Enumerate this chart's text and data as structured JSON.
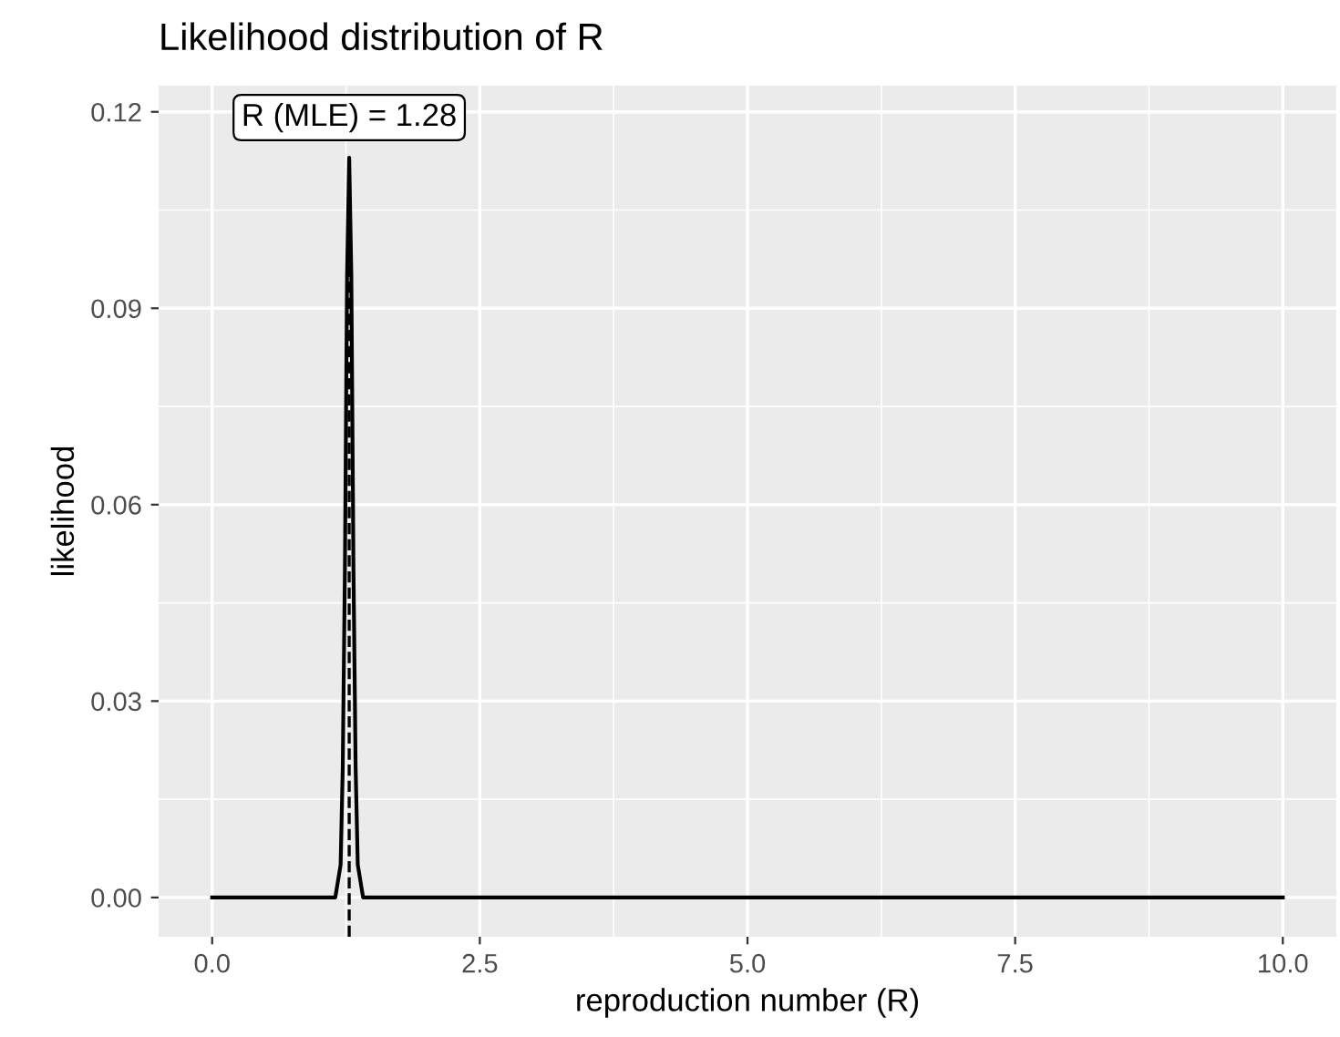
{
  "chart_data": {
    "type": "line",
    "title": "Likelihood distribution of R",
    "xlabel": "reproduction number (R)",
    "ylabel": "likelihood",
    "series": [
      {
        "color": "#000000",
        "x": [
          0,
          1.15,
          1.2,
          1.22,
          1.24,
          1.26,
          1.28,
          1.3,
          1.32,
          1.34,
          1.36,
          1.41,
          10
        ],
        "values": [
          0,
          0,
          0.005,
          0.02,
          0.05,
          0.095,
          0.113,
          0.095,
          0.05,
          0.02,
          0.005,
          0,
          0
        ]
      }
    ],
    "xlim": [
      -0.5,
      10.5
    ],
    "xticks": [
      {
        "value": 0,
        "label": "0.0"
      },
      2.5,
      {
        "value": 5,
        "label": "5.0"
      },
      7.5,
      {
        "value": 10,
        "label": "10.0"
      }
    ],
    "ylim": [
      -0.006,
      0.124
    ],
    "yticks": [
      {
        "value": 0,
        "label": "0.00"
      },
      0.03,
      0.06,
      0.09,
      {
        "value": 0.12,
        "label": "0.12"
      }
    ],
    "ref_lines": [
      {
        "axis": "x",
        "value": 1.28,
        "color": "#000000",
        "line_style": "dashed"
      }
    ],
    "annotations": [
      {
        "text": "R (MLE) = 1.28",
        "x": 1.28,
        "y": 0.113
      }
    ],
    "grid": true,
    "legend": false,
    "marker": "none",
    "line_style": "solid"
  }
}
